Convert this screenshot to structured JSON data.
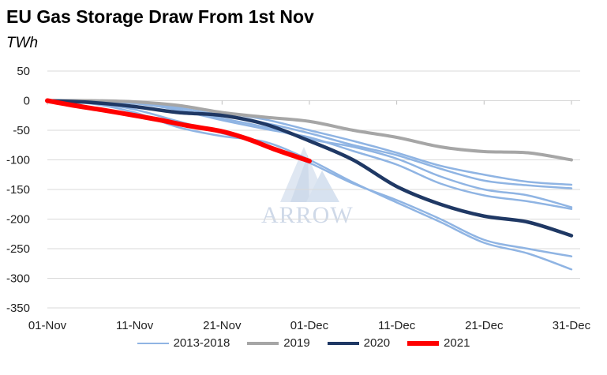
{
  "header": {
    "title": "EU Gas Storage Draw From 1st Nov",
    "subtitle": "TWh"
  },
  "watermark": {
    "text": "ARROW"
  },
  "chart_data": {
    "type": "line",
    "title": "EU Gas Storage Draw From 1st Nov",
    "ylabel": "TWh",
    "xlabel": "",
    "x_ticks": [
      "01-Nov",
      "11-Nov",
      "21-Nov",
      "01-Dec",
      "11-Dec",
      "21-Dec",
      "31-Dec"
    ],
    "ylim": [
      -350,
      50
    ],
    "y_ticks": [
      50,
      0,
      -50,
      -100,
      -150,
      -200,
      -250,
      -300,
      -350
    ],
    "x_unit": "days since 01-Nov",
    "xlim": [
      0,
      61
    ],
    "grid": "horizontal",
    "legend_position": "bottom",
    "legend": [
      "2013-2018",
      "2019",
      "2020",
      "2021"
    ],
    "series": [
      {
        "name": "2013-2018",
        "group": "2013-2018",
        "color": "#8fb4e3",
        "width": 2.5,
        "x": [
          0,
          5,
          10,
          15,
          20,
          25,
          30,
          35,
          40,
          45,
          50,
          55,
          60
        ],
        "y": [
          0,
          -5,
          -20,
          -45,
          -60,
          -70,
          -100,
          -138,
          -172,
          -205,
          -240,
          -258,
          -285
        ]
      },
      {
        "name": "2013-2018",
        "group": "2013-2018",
        "color": "#8fb4e3",
        "width": 2.5,
        "x": [
          0,
          5,
          10,
          15,
          20,
          25,
          30,
          35,
          40,
          45,
          50,
          55,
          60
        ],
        "y": [
          0,
          -3,
          -15,
          -35,
          -55,
          -75,
          -105,
          -140,
          -168,
          -200,
          -235,
          -250,
          -263
        ]
      },
      {
        "name": "2013-2018",
        "group": "2013-2018",
        "color": "#8fb4e3",
        "width": 2.5,
        "x": [
          0,
          5,
          10,
          15,
          20,
          25,
          30,
          35,
          40,
          45,
          50,
          55,
          60
        ],
        "y": [
          0,
          -2,
          -5,
          -15,
          -30,
          -45,
          -65,
          -78,
          -98,
          -128,
          -150,
          -160,
          -180
        ]
      },
      {
        "name": "2013-2018",
        "group": "2013-2018",
        "color": "#8fb4e3",
        "width": 2.5,
        "x": [
          0,
          5,
          10,
          15,
          20,
          25,
          30,
          35,
          40,
          45,
          50,
          55,
          60
        ],
        "y": [
          0,
          -1,
          -3,
          -12,
          -25,
          -38,
          -55,
          -75,
          -92,
          -115,
          -135,
          -143,
          -148
        ]
      },
      {
        "name": "2013-2018",
        "group": "2013-2018",
        "color": "#8fb4e3",
        "width": 2.5,
        "x": [
          0,
          5,
          10,
          15,
          20,
          25,
          30,
          35,
          40,
          45,
          50,
          55,
          60
        ],
        "y": [
          0,
          0,
          -2,
          -8,
          -20,
          -32,
          -50,
          -68,
          -88,
          -110,
          -125,
          -137,
          -142
        ]
      },
      {
        "name": "2013-2018",
        "group": "2013-2018",
        "color": "#8fb4e3",
        "width": 2.5,
        "x": [
          0,
          5,
          10,
          15,
          20,
          25,
          30,
          35,
          40,
          45,
          50,
          55,
          60
        ],
        "y": [
          0,
          -1,
          -4,
          -16,
          -33,
          -48,
          -62,
          -85,
          -108,
          -140,
          -160,
          -170,
          -183
        ]
      },
      {
        "name": "2019",
        "group": "2019",
        "color": "#a6a6a6",
        "width": 4,
        "x": [
          0,
          5,
          10,
          15,
          20,
          25,
          30,
          35,
          40,
          45,
          50,
          55,
          60
        ],
        "y": [
          0,
          0,
          -2,
          -8,
          -20,
          -28,
          -35,
          -50,
          -62,
          -78,
          -86,
          -88,
          -100
        ]
      },
      {
        "name": "2020",
        "group": "2020",
        "color": "#1f3864",
        "width": 4.5,
        "x": [
          0,
          5,
          10,
          15,
          20,
          25,
          30,
          35,
          40,
          45,
          50,
          55,
          60
        ],
        "y": [
          0,
          -3,
          -10,
          -20,
          -25,
          -40,
          -68,
          -100,
          -145,
          -175,
          -195,
          -205,
          -228
        ]
      },
      {
        "name": "2021",
        "group": "2021",
        "color": "#ff0000",
        "width": 6,
        "x": [
          0,
          3,
          6,
          10,
          13,
          16,
          20,
          23,
          26,
          30
        ],
        "y": [
          0,
          -8,
          -15,
          -25,
          -33,
          -42,
          -52,
          -65,
          -82,
          -102
        ]
      }
    ]
  }
}
